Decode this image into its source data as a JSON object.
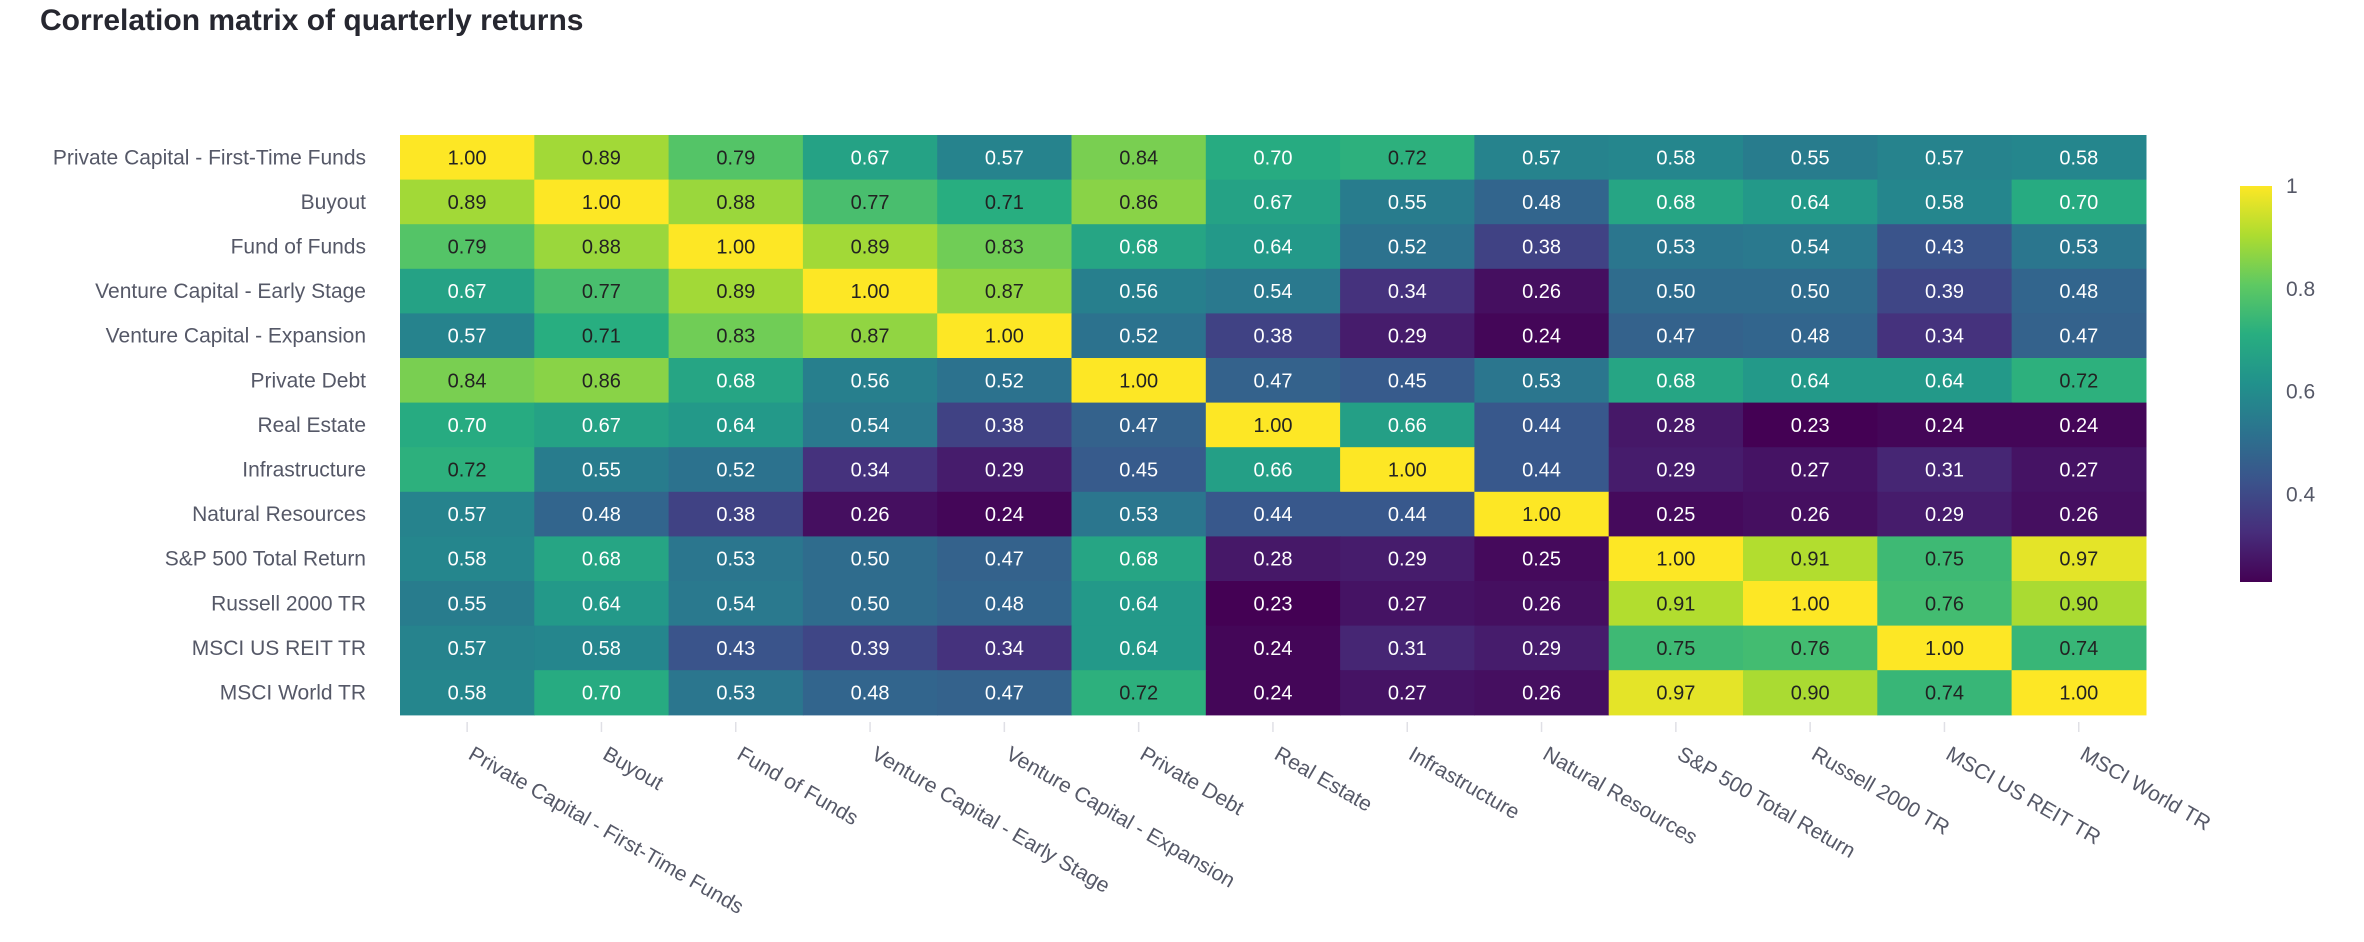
{
  "chart_data": {
    "type": "heatmap",
    "title": "Correlation matrix of quarterly returns",
    "labels": [
      "Private Capital - First-Time Funds",
      "Buyout",
      "Fund of Funds",
      "Venture Capital - Early Stage",
      "Venture Capital - Expansion",
      "Private Debt",
      "Real Estate",
      "Infrastructure",
      "Natural Resources",
      "S&P 500 Total Return",
      "Russell 2000 TR",
      "MSCI US REIT TR",
      "MSCI World TR"
    ],
    "values": [
      [
        1.0,
        0.89,
        0.79,
        0.67,
        0.57,
        0.84,
        0.7,
        0.72,
        0.57,
        0.58,
        0.55,
        0.57,
        0.58
      ],
      [
        0.89,
        1.0,
        0.88,
        0.77,
        0.71,
        0.86,
        0.67,
        0.55,
        0.48,
        0.68,
        0.64,
        0.58,
        0.7
      ],
      [
        0.79,
        0.88,
        1.0,
        0.89,
        0.83,
        0.68,
        0.64,
        0.52,
        0.38,
        0.53,
        0.54,
        0.43,
        0.53
      ],
      [
        0.67,
        0.77,
        0.89,
        1.0,
        0.87,
        0.56,
        0.54,
        0.34,
        0.26,
        0.5,
        0.5,
        0.39,
        0.48
      ],
      [
        0.57,
        0.71,
        0.83,
        0.87,
        1.0,
        0.52,
        0.38,
        0.29,
        0.24,
        0.47,
        0.48,
        0.34,
        0.47
      ],
      [
        0.84,
        0.86,
        0.68,
        0.56,
        0.52,
        1.0,
        0.47,
        0.45,
        0.53,
        0.68,
        0.64,
        0.64,
        0.72
      ],
      [
        0.7,
        0.67,
        0.64,
        0.54,
        0.38,
        0.47,
        1.0,
        0.66,
        0.44,
        0.28,
        0.23,
        0.24,
        0.24
      ],
      [
        0.72,
        0.55,
        0.52,
        0.34,
        0.29,
        0.45,
        0.66,
        1.0,
        0.44,
        0.29,
        0.27,
        0.31,
        0.27
      ],
      [
        0.57,
        0.48,
        0.38,
        0.26,
        0.24,
        0.53,
        0.44,
        0.44,
        1.0,
        0.25,
        0.26,
        0.29,
        0.26
      ],
      [
        0.58,
        0.68,
        0.53,
        0.5,
        0.47,
        0.68,
        0.28,
        0.29,
        0.25,
        1.0,
        0.91,
        0.75,
        0.97
      ],
      [
        0.55,
        0.64,
        0.54,
        0.5,
        0.48,
        0.64,
        0.23,
        0.27,
        0.26,
        0.91,
        1.0,
        0.76,
        0.9
      ],
      [
        0.57,
        0.58,
        0.43,
        0.39,
        0.34,
        0.64,
        0.24,
        0.31,
        0.29,
        0.75,
        0.76,
        1.0,
        0.74
      ],
      [
        0.58,
        0.7,
        0.53,
        0.48,
        0.47,
        0.72,
        0.24,
        0.27,
        0.26,
        0.97,
        0.9,
        0.74,
        1.0
      ]
    ],
    "colorscale": "viridis",
    "zmin": 0.23,
    "zmax": 1.0,
    "colorbar_ticks": [
      0.4,
      0.6,
      0.8,
      1
    ],
    "colorbar_tick_labels": [
      "0.4",
      "0.6",
      "0.8",
      "1"
    ],
    "value_format": "2 decimals"
  }
}
